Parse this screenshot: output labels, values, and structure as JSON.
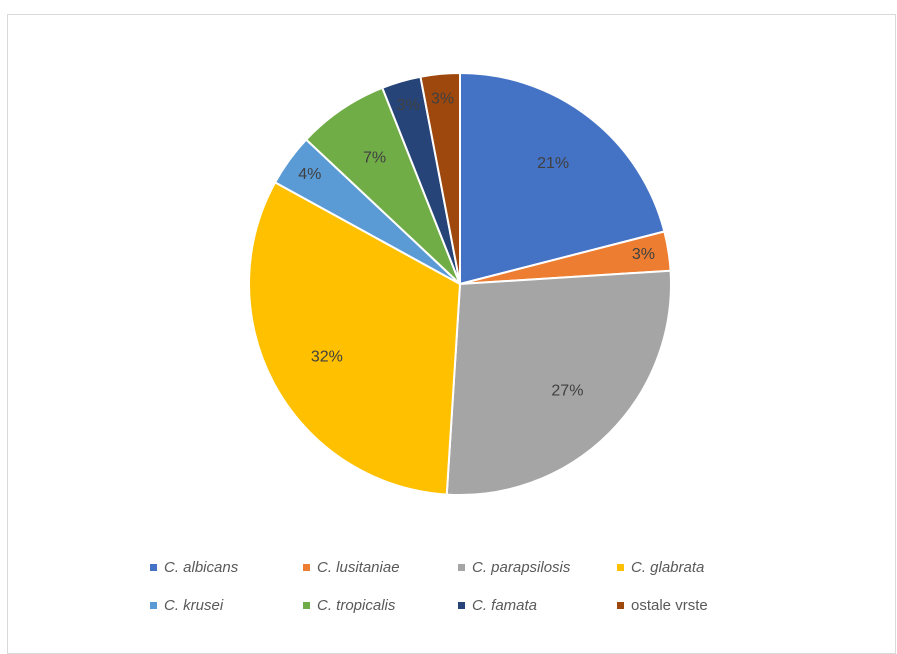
{
  "chart_data": {
    "type": "pie",
    "categories": [
      "C. albicans",
      "C. lusitaniae",
      "C. parapsilosis",
      "C. glabrata",
      "C. krusei",
      "C. tropicalis",
      "C. famata",
      "ostale vrste"
    ],
    "values": [
      21,
      3,
      27,
      32,
      4,
      7,
      3,
      3
    ],
    "labels": [
      "21%",
      "3%",
      "27%",
      "32%",
      "4%",
      "7%",
      "3%",
      "3%"
    ],
    "colors": [
      "#4472C4",
      "#ED7D31",
      "#A5A5A5",
      "#FFC000",
      "#5B9BD5",
      "#70AD47",
      "#264478",
      "#9E480E"
    ],
    "italic": [
      true,
      true,
      true,
      true,
      true,
      true,
      true,
      false
    ],
    "legend_position": "bottom"
  }
}
